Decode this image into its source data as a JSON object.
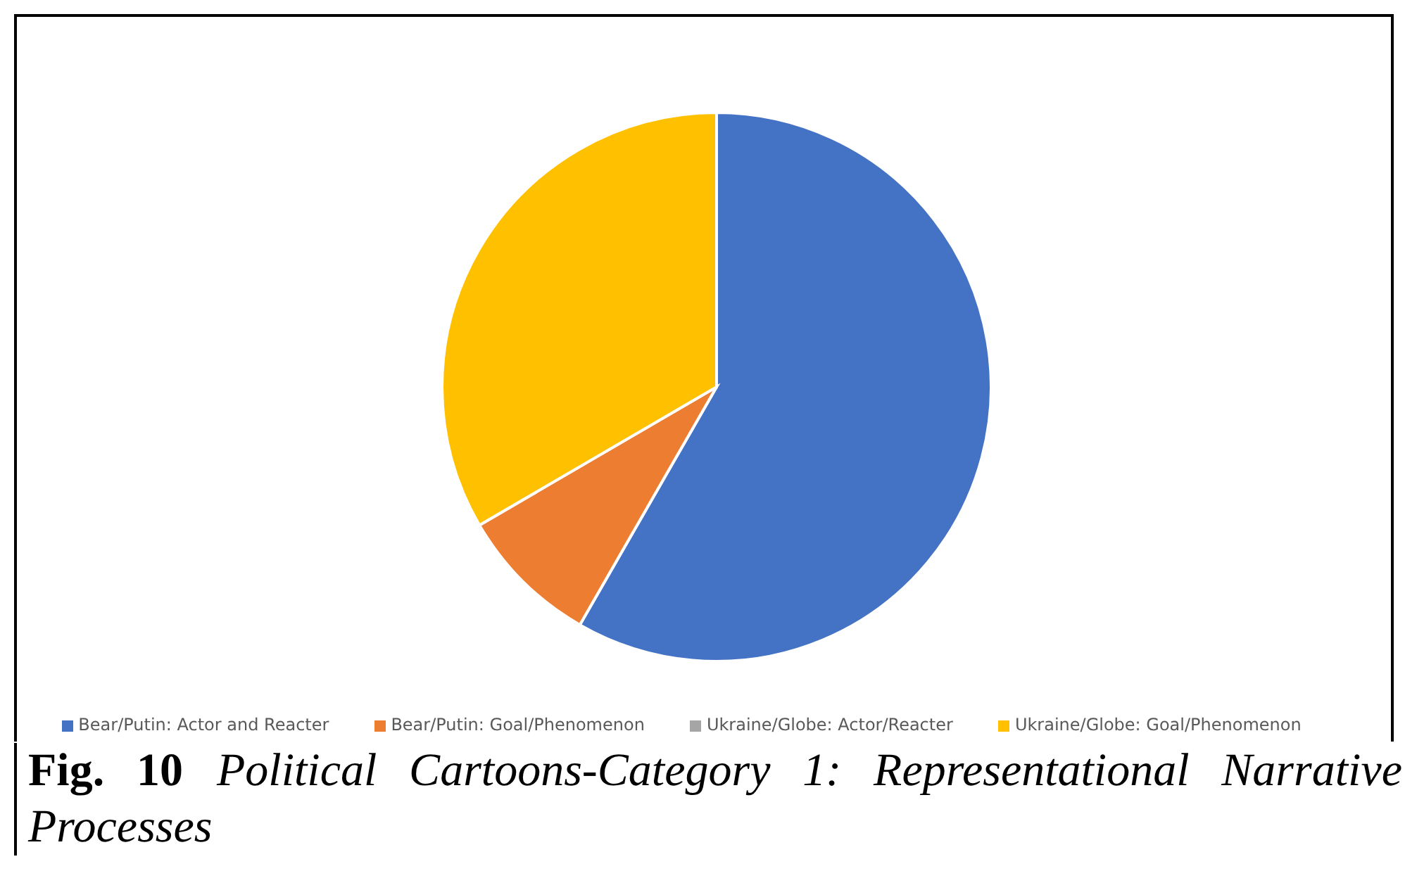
{
  "chart_data": {
    "type": "pie",
    "categories": [
      "Bear/Putin: Actor and Reacter",
      "Bear/Putin: Goal/Phenomenon",
      "Ukraine/Globe: Actor/Reacter",
      "Ukraine/Globe: Goal/Phenomenon"
    ],
    "values": [
      58.3,
      8.3,
      0,
      33.4
    ],
    "colors": [
      "#4472c4",
      "#ed7d31",
      "#a5a5a5",
      "#ffc000"
    ],
    "legend": "bottom",
    "annotations": [
      "Fig. 10",
      "Political Cartoons-Category 1: Representational Narrative Processes"
    ]
  }
}
